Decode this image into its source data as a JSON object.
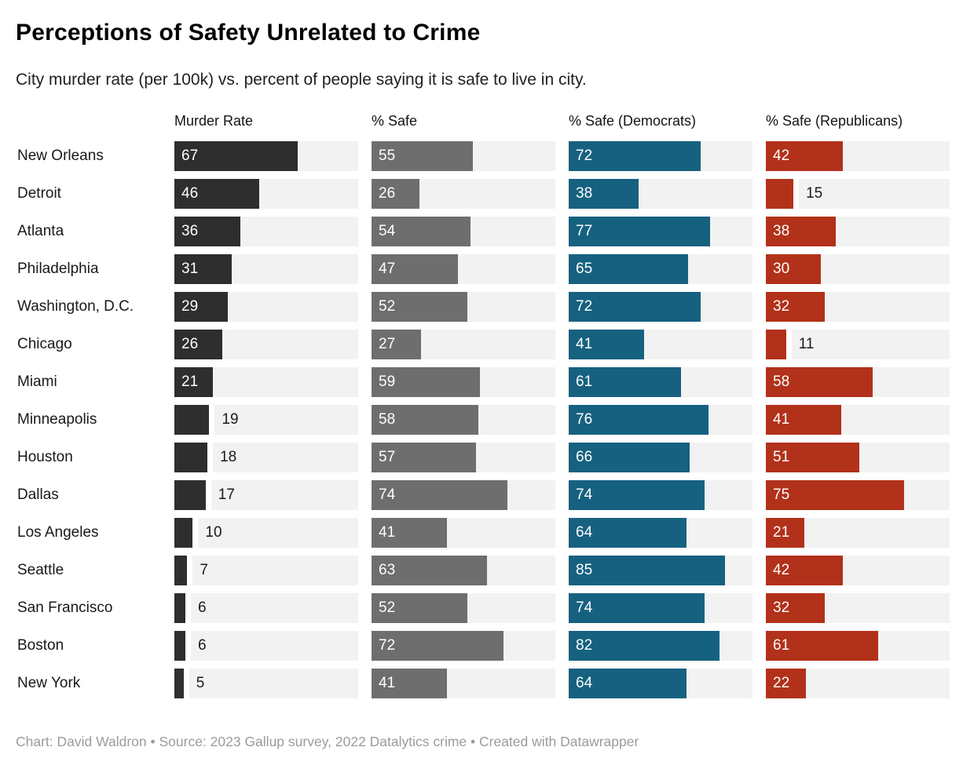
{
  "header": {
    "title": "Perceptions of Safety Unrelated to Crime",
    "subtitle": "City murder rate (per 100k) vs. percent of people saying it is safe to live in city."
  },
  "footer": {
    "text": "Chart: David Waldron • Source: 2023 Gallup survey, 2022 Datalytics crime • Created with Datawrapper"
  },
  "chart_data": {
    "type": "bar",
    "layout": "horizontal-bar-table",
    "xlim": [
      0,
      100
    ],
    "grid": false,
    "track_color": "#f2f2f2",
    "label_inside_threshold": 20,
    "columns": [
      "Murder Rate",
      "% Safe",
      "% Safe (Democrats)",
      "% Safe (Republicans)"
    ],
    "categories": [
      "New Orleans",
      "Detroit",
      "Atlanta",
      "Philadelphia",
      "Washington, D.C.",
      "Chicago",
      "Miami",
      "Minneapolis",
      "Houston",
      "Dallas",
      "Los Angeles",
      "Seattle",
      "San Francisco",
      "Boston",
      "New York"
    ],
    "series": [
      {
        "name": "Murder Rate",
        "color": "#2e2e2e",
        "values": [
          67,
          46,
          36,
          31,
          29,
          26,
          21,
          19,
          18,
          17,
          10,
          7,
          6,
          6,
          5
        ]
      },
      {
        "name": "% Safe",
        "color": "#6e6e6e",
        "values": [
          55,
          26,
          54,
          47,
          52,
          27,
          59,
          58,
          57,
          74,
          41,
          63,
          52,
          72,
          41
        ]
      },
      {
        "name": "% Safe (Democrats)",
        "color": "#166180",
        "values": [
          72,
          38,
          77,
          65,
          72,
          41,
          61,
          76,
          66,
          74,
          64,
          85,
          74,
          82,
          64
        ]
      },
      {
        "name": "% Safe (Republicans)",
        "color": "#b2311a",
        "values": [
          42,
          15,
          38,
          30,
          32,
          11,
          58,
          41,
          51,
          75,
          21,
          42,
          32,
          61,
          22
        ]
      }
    ]
  }
}
